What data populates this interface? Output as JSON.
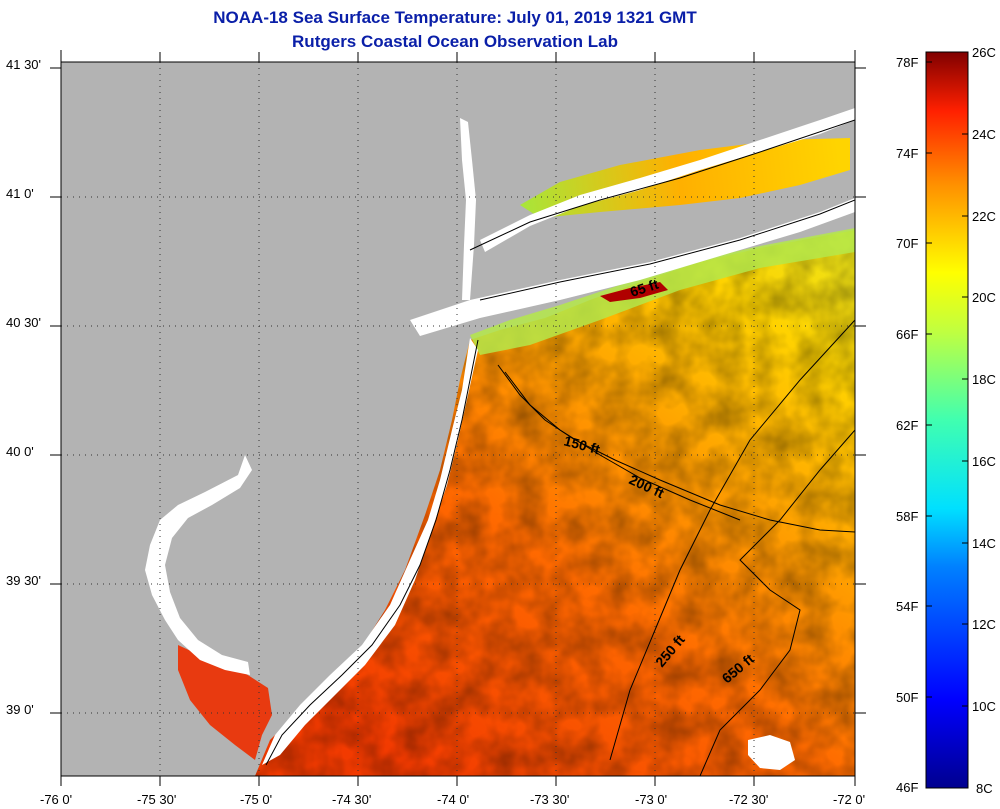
{
  "title": {
    "line1": "NOAA-18 Sea Surface Temperature:  July 01, 2019 1321 GMT",
    "line2": "Rutgers Coastal Ocean Observation Lab"
  },
  "axes": {
    "latitude_labels": [
      "41 30'",
      "41 0'",
      "40 30'",
      "40 0'",
      "39 30'",
      "39 0'"
    ],
    "longitude_labels": [
      "-76 0'",
      "-75 30'",
      "-75 0'",
      "-74 30'",
      "-74 0'",
      "-73 30'",
      "-73 0'",
      "-72 30'",
      "-72 0'"
    ],
    "lat_range": [
      38.75,
      41.5
    ],
    "lon_range": [
      -76.0,
      -72.0
    ],
    "grid": "dotted"
  },
  "colorbar": {
    "fahrenheit_labels": [
      "78F",
      "74F",
      "70F",
      "66F",
      "62F",
      "58F",
      "54F",
      "50F",
      "46F"
    ],
    "celsius_labels": [
      "26C",
      "24C",
      "22C",
      "20C",
      "18C",
      "16C",
      "14C",
      "12C",
      "10C",
      "8C"
    ],
    "range_c": [
      8,
      26
    ]
  },
  "contours": [
    {
      "label": "65 ft"
    },
    {
      "label": "150 ft"
    },
    {
      "label": "200 ft"
    },
    {
      "label": "250 ft"
    },
    {
      "label": "650 ft"
    }
  ],
  "colors": {
    "land": "#b3b3b3",
    "title": "#0a1fa8",
    "cloud_mask": "#ffffff"
  }
}
